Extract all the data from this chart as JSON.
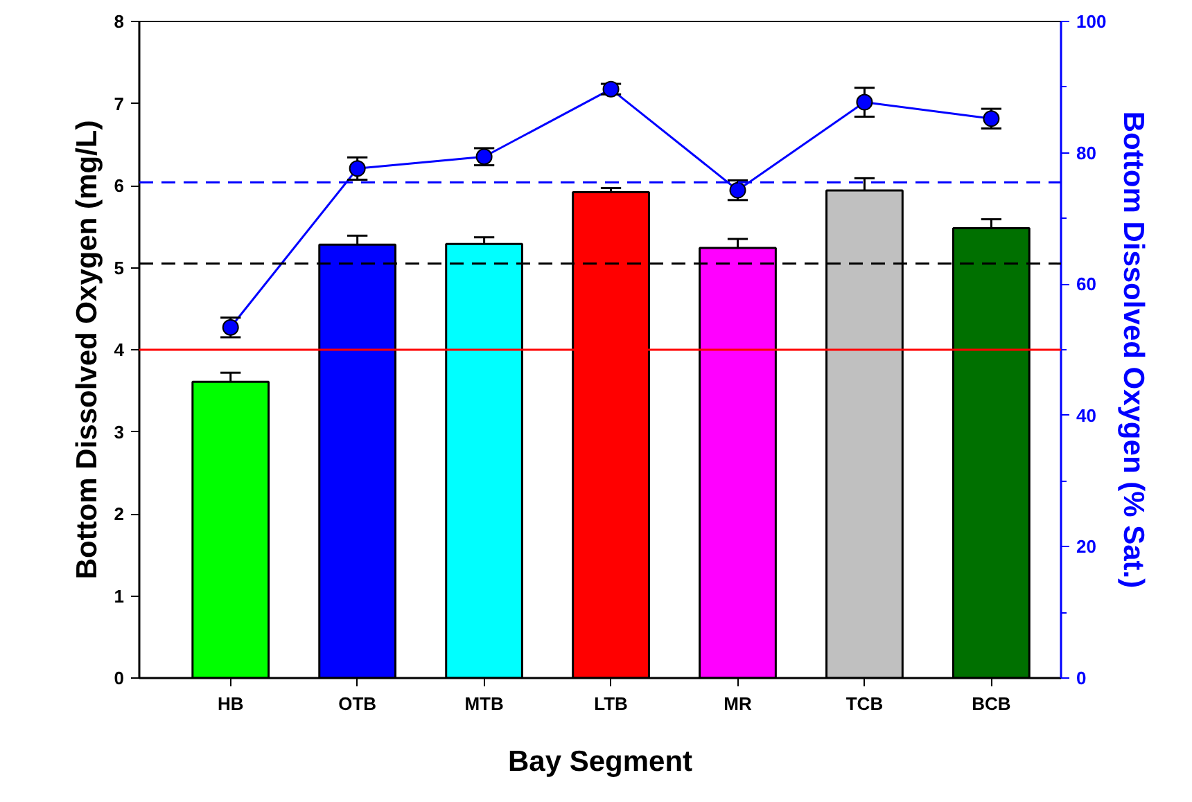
{
  "chart_data": {
    "type": "bar",
    "xlabel": "Bay Segment",
    "ylabel": "Bottom Dissolved Oxygen (mg/L)",
    "y2label": "Bottom Dissolved Oxygen (% Sat.)",
    "categories": [
      "HB",
      "OTB",
      "MTB",
      "LTB",
      "MR",
      "TCB",
      "BCB"
    ],
    "series": [
      {
        "colors": [
          "#00ff00",
          "#0000ff",
          "#00ffff",
          "#ff0000",
          "#ff00ff",
          "#c0c0c0",
          "#007000"
        ],
        "values": [
          3.61,
          5.28,
          5.29,
          5.92,
          5.24,
          5.94,
          5.48
        ],
        "errors": [
          0.11,
          0.11,
          0.08,
          0.05,
          0.11,
          0.15,
          0.11
        ]
      },
      {
        "type": "line",
        "axis": "y2",
        "color": "#0000ff",
        "marker": "circle",
        "values": [
          53.4,
          77.6,
          79.4,
          89.7,
          74.3,
          87.7,
          85.2
        ],
        "errors": [
          1.5,
          1.7,
          1.3,
          0.8,
          1.5,
          2.2,
          1.5
        ]
      }
    ],
    "ylim": [
      0,
      8
    ],
    "yticks": [
      0,
      1,
      2,
      3,
      4,
      5,
      6,
      7,
      8
    ],
    "y2lim": [
      0,
      100
    ],
    "y2ticks": [
      0,
      20,
      40,
      60,
      80,
      100
    ],
    "ref_lines": [
      {
        "axis": "y",
        "value": 4,
        "color": "#ff0000",
        "line_style": "solid"
      },
      {
        "axis": "y",
        "value": 5.05,
        "color": "#000000",
        "line_style": "dashed"
      },
      {
        "axis": "y2",
        "value": 75.5,
        "color": "#0000ff",
        "line_style": "dashed"
      }
    ],
    "grid": false
  }
}
